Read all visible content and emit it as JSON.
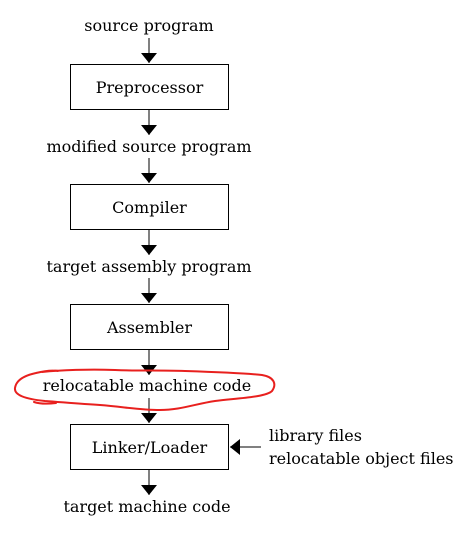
{
  "diagram": {
    "stages": {
      "source": "source program",
      "modified": "modified source program",
      "target_asm": "target assembly program",
      "relocatable": "relocatable machine code",
      "target_machine": "target machine code"
    },
    "boxes": {
      "preprocessor": "Preprocessor",
      "compiler": "Compiler",
      "assembler": "Assembler",
      "linker": "Linker/Loader"
    },
    "side_inputs": {
      "library": "library files",
      "relocatable_objects": "relocatable object files"
    },
    "highlight_color": "#e8201e"
  }
}
